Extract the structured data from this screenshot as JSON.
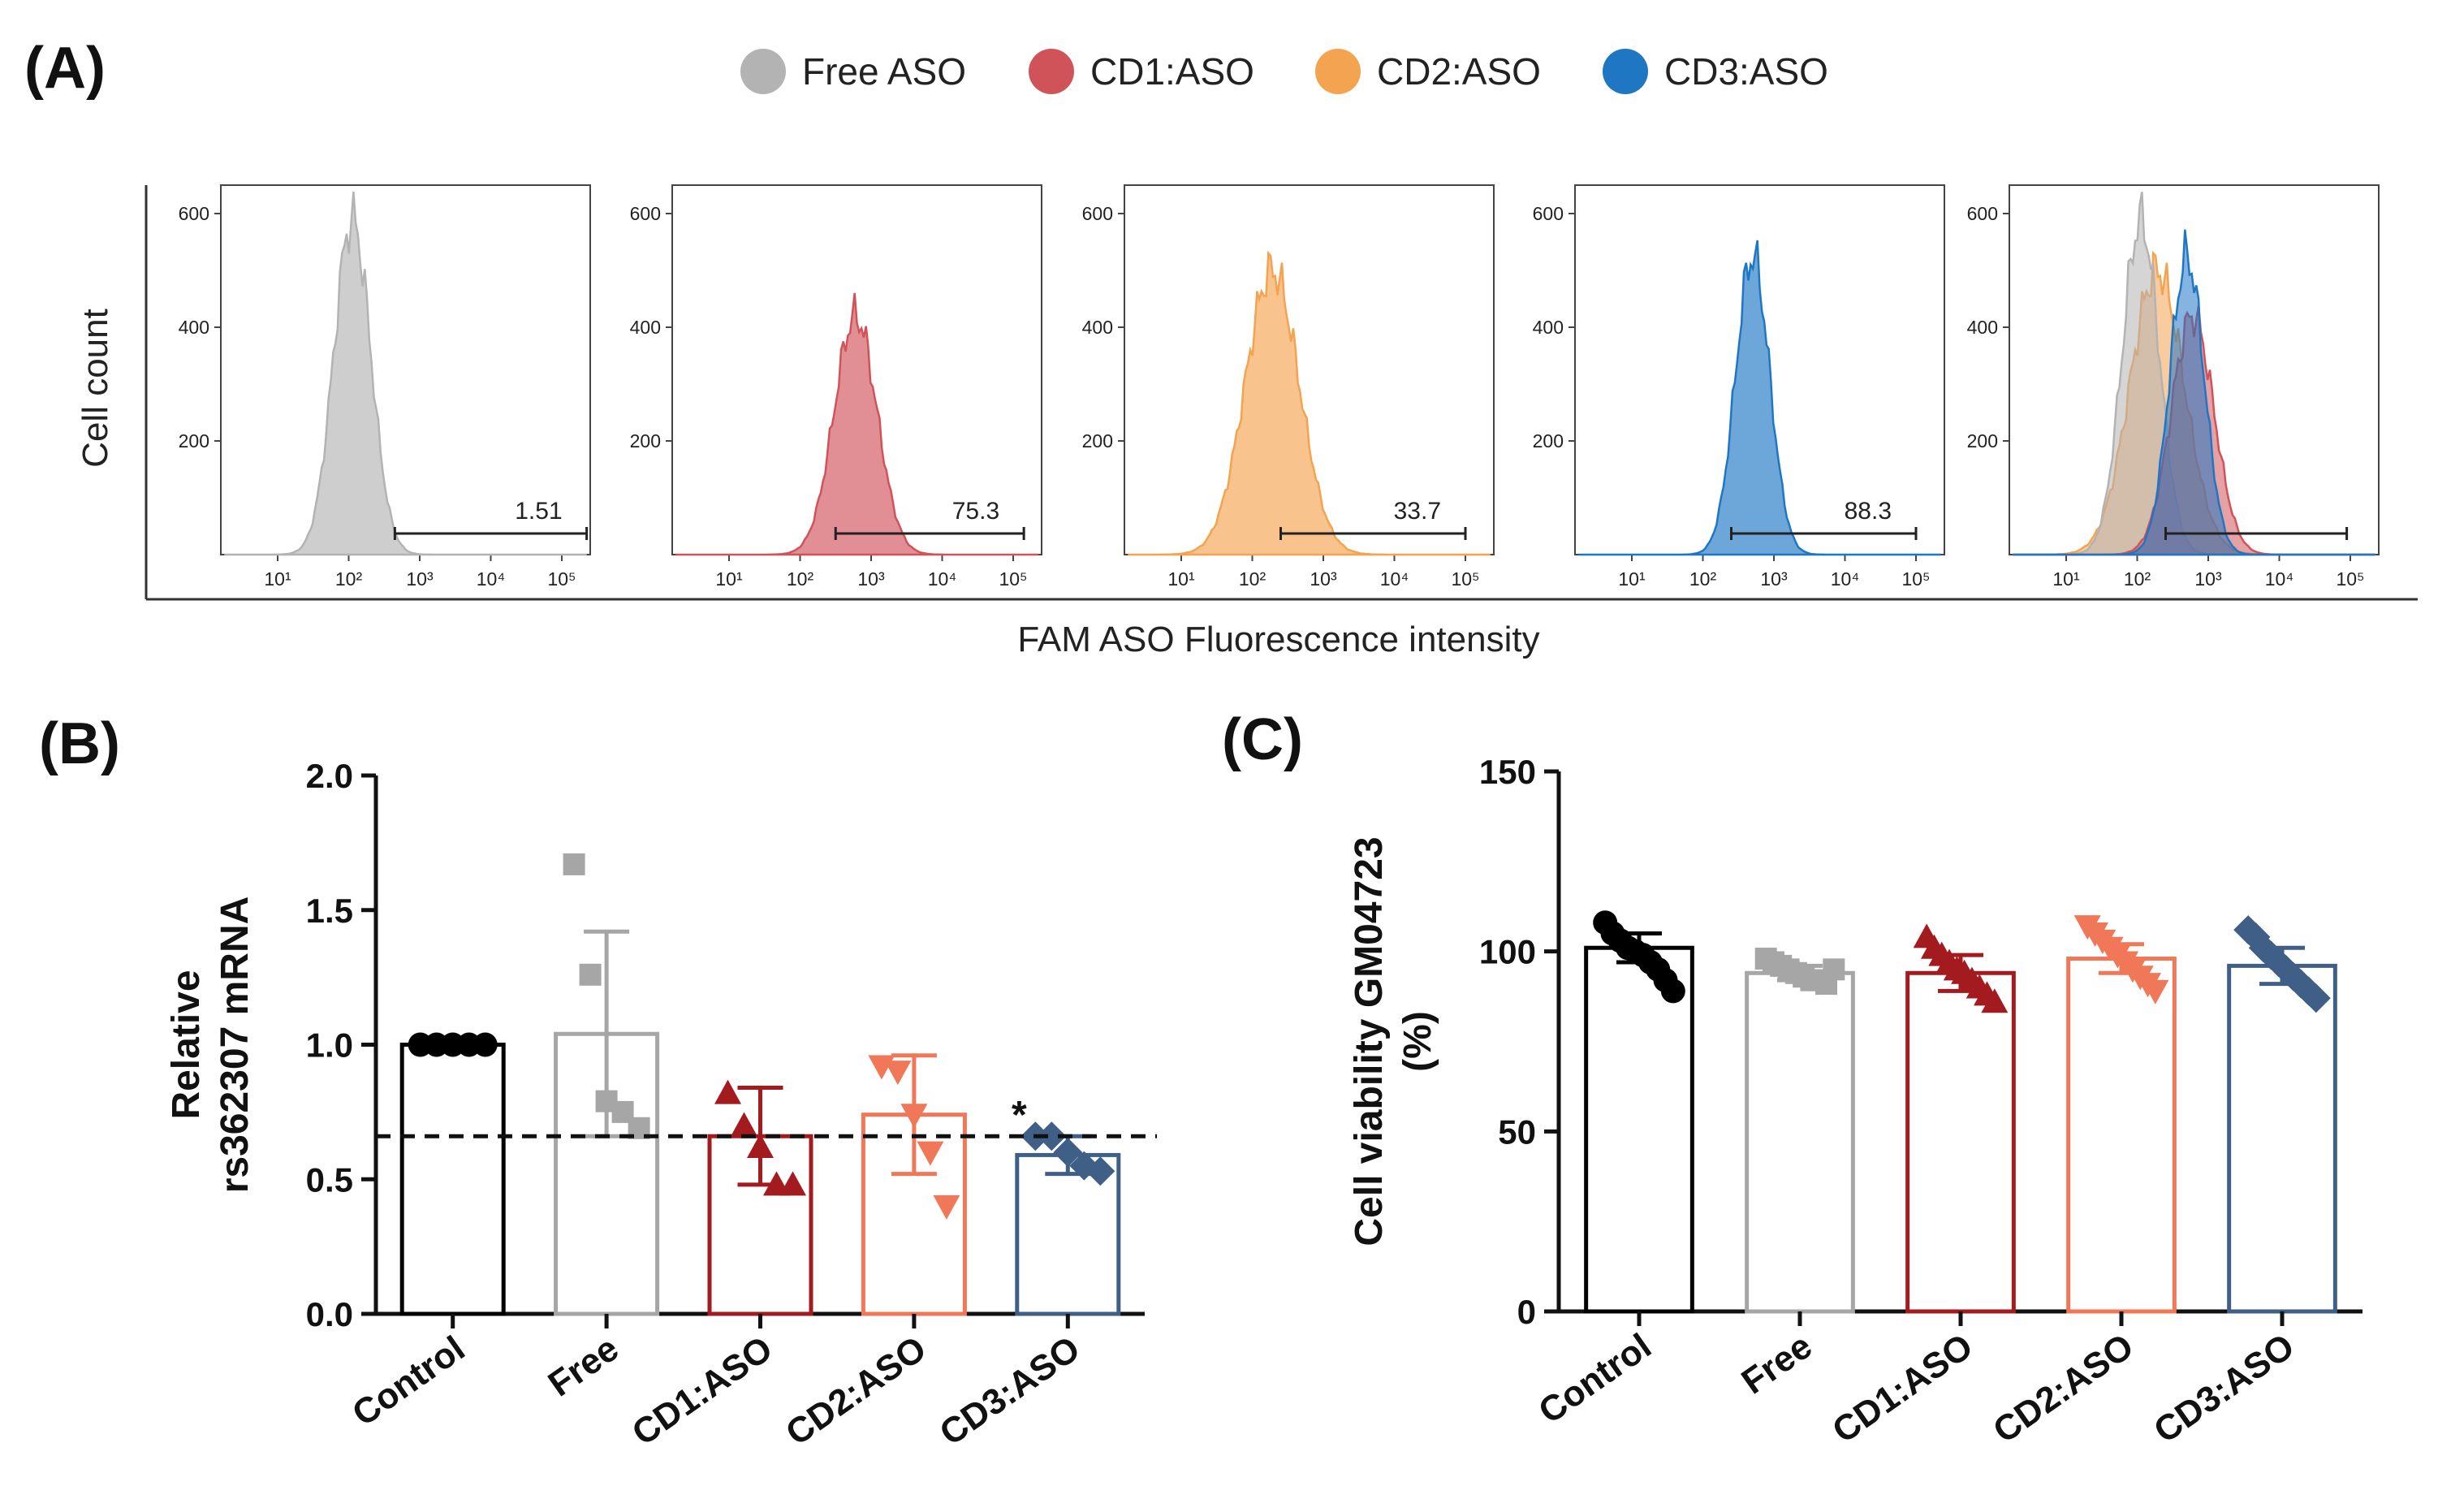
{
  "panels": {
    "a_label": "(A)",
    "b_label": "(B)",
    "c_label": "(C)"
  },
  "colors": {
    "free": "#b3b3b3",
    "cd1": "#d1535a",
    "cd2": "#f4a350",
    "cd3": "#1f77c4",
    "free_bar": "#a6a6a6",
    "cd1_bar": "#a31a1f",
    "cd2_bar": "#f07757",
    "cd3_bar": "#3f5f87",
    "control_bar": "#000000"
  },
  "chart_data": [
    {
      "type": "histogram",
      "panel": "A",
      "legend": [
        {
          "name": "Free ASO",
          "color": "#b3b3b3"
        },
        {
          "name": "CD1:ASO",
          "color": "#d1535a"
        },
        {
          "name": "CD2:ASO",
          "color": "#f4a350"
        },
        {
          "name": "CD3:ASO",
          "color": "#1f77c4"
        }
      ],
      "ylabel": "Cell count",
      "xlabel": "FAM ASO Fluorescence intensity",
      "x_scale": "log10",
      "x_ticks": [
        "10¹",
        "10²",
        "10³",
        "10⁴",
        "10⁵"
      ],
      "y_ticks": [
        "200",
        "400",
        "600"
      ],
      "ylim": [
        0,
        650
      ],
      "xlim_log10": [
        0.2,
        5.4
      ],
      "subplots": [
        {
          "name": "Free ASO",
          "gate_value": "1.51",
          "gate_log10": [
            2.65,
            5.35
          ],
          "curves": [
            {
              "series": "Free ASO",
              "peak_log10": 2.05,
              "peak_count": 590,
              "width_log10": 0.26
            }
          ]
        },
        {
          "name": "CD1:ASO",
          "gate_value": "75.3",
          "gate_log10": [
            2.5,
            5.15
          ],
          "curves": [
            {
              "series": "CD1:ASO",
              "peak_log10": 2.78,
              "peak_count": 420,
              "width_log10": 0.3
            }
          ]
        },
        {
          "name": "CD2:ASO",
          "gate_value": "33.7",
          "gate_log10": [
            2.4,
            5.0
          ],
          "curves": [
            {
              "series": "CD2:ASO",
              "peak_log10": 2.28,
              "peak_count": 500,
              "width_log10": 0.38
            }
          ]
        },
        {
          "name": "CD3:ASO",
          "gate_value": "88.3",
          "gate_log10": [
            2.4,
            5.0
          ],
          "curves": [
            {
              "series": "CD3:ASO",
              "peak_log10": 2.7,
              "peak_count": 525,
              "width_log10": 0.24
            }
          ]
        },
        {
          "name": "Overlay",
          "gate_value": "",
          "gate_log10": [
            2.4,
            4.95
          ],
          "curves": [
            {
              "series": "CD2:ASO",
              "peak_log10": 2.28,
              "peak_count": 500,
              "width_log10": 0.38
            },
            {
              "series": "Free ASO",
              "peak_log10": 2.05,
              "peak_count": 590,
              "width_log10": 0.26
            },
            {
              "series": "CD1:ASO",
              "peak_log10": 2.78,
              "peak_count": 420,
              "width_log10": 0.3
            },
            {
              "series": "CD3:ASO",
              "peak_log10": 2.7,
              "peak_count": 525,
              "width_log10": 0.24
            }
          ]
        }
      ]
    },
    {
      "type": "bar",
      "panel": "B",
      "ylabel_line1": "Relative",
      "ylabel_line2": "rs362307 mRNA",
      "categories": [
        "Control",
        "Free",
        "CD1:ASO",
        "CD2:ASO",
        "CD3:ASO"
      ],
      "values": [
        1.0,
        1.04,
        0.66,
        0.74,
        0.59
      ],
      "errors": [
        0.0,
        0.38,
        0.18,
        0.22,
        0.07
      ],
      "points": [
        [
          1.0,
          1.0,
          1.0,
          1.0,
          1.0
        ],
        [
          1.67,
          1.26,
          0.79,
          0.75,
          0.69
        ],
        [
          0.82,
          0.7,
          0.62,
          0.48,
          0.48
        ],
        [
          0.92,
          0.9,
          0.74,
          0.6,
          0.4
        ],
        [
          0.66,
          0.66,
          0.6,
          0.55,
          0.53
        ]
      ],
      "markers": [
        "circle",
        "square",
        "triangle-up",
        "triangle-down",
        "diamond"
      ],
      "bar_colors": [
        "#000000",
        "#a6a6a6",
        "#a31a1f",
        "#f07757",
        "#3f5f87"
      ],
      "ylim": [
        0,
        2.0
      ],
      "y_ticks": [
        "0.0",
        "0.5",
        "1.0",
        "1.5",
        "2.0"
      ],
      "reference_line": 0.66,
      "annotation": "*"
    },
    {
      "type": "bar",
      "panel": "C",
      "ylabel_line1": "Cell viability GM04723",
      "ylabel_line2": "(%)",
      "categories": [
        "Control",
        "Free",
        "CD1:ASO",
        "CD2:ASO",
        "CD3:ASO"
      ],
      "values": [
        101,
        94,
        94,
        98,
        96
      ],
      "errors": [
        4,
        2,
        5,
        4,
        5
      ],
      "points": [
        [
          108,
          105,
          103,
          101,
          100,
          99,
          97,
          95,
          92,
          89
        ],
        [
          98,
          97,
          96,
          95,
          94,
          93,
          92,
          92,
          91,
          95
        ],
        [
          104,
          101,
          99,
          97,
          95,
          94,
          92,
          90,
          88,
          86
        ],
        [
          107,
          105,
          103,
          101,
          99,
          97,
          95,
          93,
          91,
          89
        ],
        [
          106,
          104,
          101,
          99,
          97,
          95,
          93,
          91,
          89,
          87
        ]
      ],
      "markers": [
        "circle",
        "square",
        "triangle-up",
        "triangle-down",
        "diamond"
      ],
      "bar_colors": [
        "#000000",
        "#a6a6a6",
        "#a31a1f",
        "#f07757",
        "#3f5f87"
      ],
      "ylim": [
        0,
        150
      ],
      "y_ticks": [
        "0",
        "50",
        "100",
        "150"
      ]
    }
  ]
}
